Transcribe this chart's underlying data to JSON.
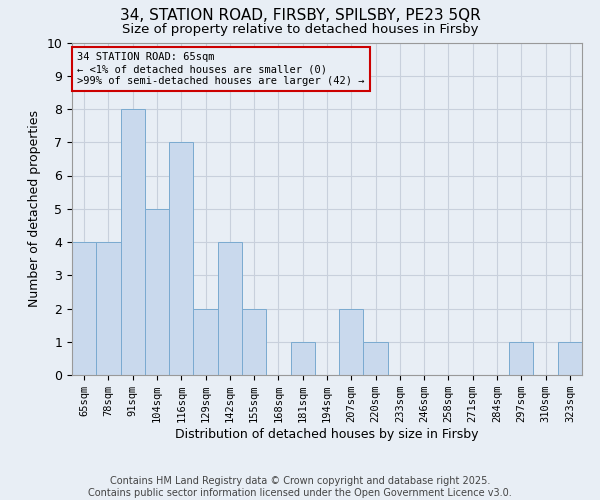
{
  "title": "34, STATION ROAD, FIRSBY, SPILSBY, PE23 5QR",
  "subtitle": "Size of property relative to detached houses in Firsby",
  "xlabel": "Distribution of detached houses by size in Firsby",
  "ylabel": "Number of detached properties",
  "categories": [
    "65sqm",
    "78sqm",
    "91sqm",
    "104sqm",
    "116sqm",
    "129sqm",
    "142sqm",
    "155sqm",
    "168sqm",
    "181sqm",
    "194sqm",
    "207sqm",
    "220sqm",
    "233sqm",
    "246sqm",
    "258sqm",
    "271sqm",
    "284sqm",
    "297sqm",
    "310sqm",
    "323sqm"
  ],
  "values": [
    4,
    4,
    8,
    5,
    7,
    2,
    4,
    2,
    0,
    1,
    0,
    2,
    1,
    0,
    0,
    0,
    0,
    0,
    1,
    0,
    1
  ],
  "bar_color": "#c9d9ed",
  "bar_edge_color": "#7aaad0",
  "ylim": [
    0,
    10
  ],
  "yticks": [
    0,
    1,
    2,
    3,
    4,
    5,
    6,
    7,
    8,
    9,
    10
  ],
  "grid_color": "#c8d0dc",
  "bg_color": "#e8eef5",
  "annotation_box_color": "#cc0000",
  "annotation_line1": "34 STATION ROAD: 65sqm",
  "annotation_line2": "← <1% of detached houses are smaller (0)",
  "annotation_line3": ">99% of semi-detached houses are larger (42) →",
  "footer_line1": "Contains HM Land Registry data © Crown copyright and database right 2025.",
  "footer_line2": "Contains public sector information licensed under the Open Government Licence v3.0.",
  "title_fontsize": 11,
  "subtitle_fontsize": 9.5,
  "annotation_fontsize": 7.5,
  "ylabel_fontsize": 9,
  "xlabel_fontsize": 9,
  "footer_fontsize": 7.0,
  "tick_fontsize": 7.5
}
